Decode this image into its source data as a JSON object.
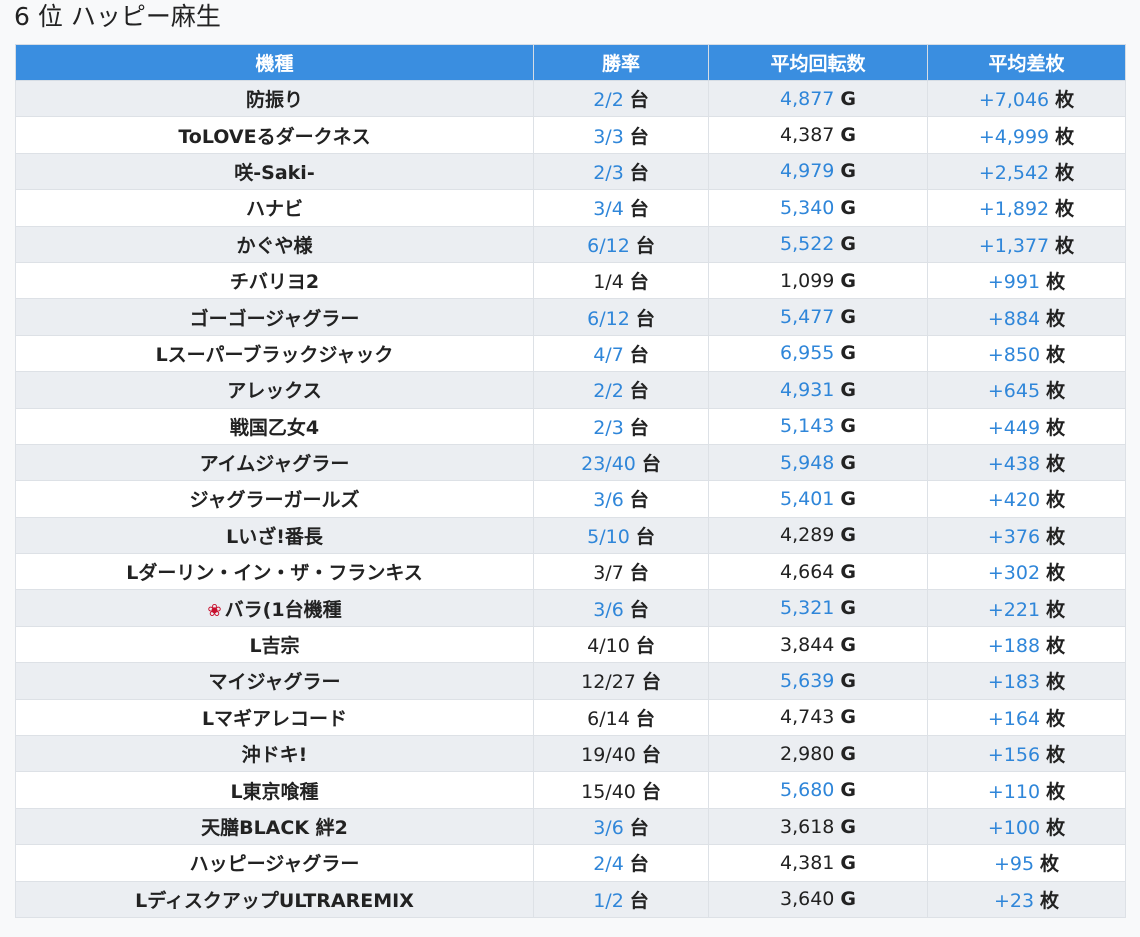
{
  "title": {
    "rank": "6 位",
    "store": "ハッピー麻生"
  },
  "header": {
    "model": "機種",
    "win_rate": "勝率",
    "avg_spins": "平均回転数",
    "avg_diff": "平均差枚"
  },
  "units": {
    "machines": "台",
    "games": "G",
    "medals": "枚"
  },
  "colors": {
    "header_bg": "#3a8ee0",
    "link_blue": "#2f86d9",
    "row_alt": "#ebeef2"
  },
  "rows": [
    {
      "model": "防振り",
      "win": "2/2",
      "win_blue": true,
      "spins": "4,877",
      "spins_blue": true,
      "diff": "+7,046"
    },
    {
      "model": "ToLOVEるダークネス",
      "win": "3/3",
      "win_blue": true,
      "spins": "4,387",
      "spins_blue": false,
      "diff": "+4,999"
    },
    {
      "model": "咲-Saki-",
      "win": "2/3",
      "win_blue": true,
      "spins": "4,979",
      "spins_blue": true,
      "diff": "+2,542"
    },
    {
      "model": "ハナビ",
      "win": "3/4",
      "win_blue": true,
      "spins": "5,340",
      "spins_blue": true,
      "diff": "+1,892"
    },
    {
      "model": "かぐや様",
      "win": "6/12",
      "win_blue": true,
      "spins": "5,522",
      "spins_blue": true,
      "diff": "+1,377"
    },
    {
      "model": "チバリヨ2",
      "win": "1/4",
      "win_blue": false,
      "spins": "1,099",
      "spins_blue": false,
      "diff": "+991"
    },
    {
      "model": "ゴーゴージャグラー",
      "win": "6/12",
      "win_blue": true,
      "spins": "5,477",
      "spins_blue": true,
      "diff": "+884"
    },
    {
      "model": "Lスーパーブラックジャック",
      "win": "4/7",
      "win_blue": true,
      "spins": "6,955",
      "spins_blue": true,
      "diff": "+850"
    },
    {
      "model": "アレックス",
      "win": "2/2",
      "win_blue": true,
      "spins": "4,931",
      "spins_blue": true,
      "diff": "+645"
    },
    {
      "model": "戦国乙女4",
      "win": "2/3",
      "win_blue": true,
      "spins": "5,143",
      "spins_blue": true,
      "diff": "+449"
    },
    {
      "model": "アイムジャグラー",
      "win": "23/40",
      "win_blue": true,
      "spins": "5,948",
      "spins_blue": true,
      "diff": "+438"
    },
    {
      "model": "ジャグラーガールズ",
      "win": "3/6",
      "win_blue": true,
      "spins": "5,401",
      "spins_blue": true,
      "diff": "+420"
    },
    {
      "model": "Lいざ!番長",
      "win": "5/10",
      "win_blue": true,
      "spins": "4,289",
      "spins_blue": false,
      "diff": "+376"
    },
    {
      "model": "Lダーリン・イン・ザ・フランキス",
      "win": "3/7",
      "win_blue": false,
      "spins": "4,664",
      "spins_blue": false,
      "diff": "+302"
    },
    {
      "model": "バラ(1台機種",
      "rose": true,
      "win": "3/6",
      "win_blue": true,
      "spins": "5,321",
      "spins_blue": true,
      "diff": "+221"
    },
    {
      "model": "L吉宗",
      "win": "4/10",
      "win_blue": false,
      "spins": "3,844",
      "spins_blue": false,
      "diff": "+188"
    },
    {
      "model": "マイジャグラー",
      "win": "12/27",
      "win_blue": false,
      "spins": "5,639",
      "spins_blue": true,
      "diff": "+183"
    },
    {
      "model": "Lマギアレコード",
      "win": "6/14",
      "win_blue": false,
      "spins": "4,743",
      "spins_blue": false,
      "diff": "+164"
    },
    {
      "model": "沖ドキ!",
      "win": "19/40",
      "win_blue": false,
      "spins": "2,980",
      "spins_blue": false,
      "diff": "+156"
    },
    {
      "model": "L東京喰種",
      "win": "15/40",
      "win_blue": false,
      "spins": "5,680",
      "spins_blue": true,
      "diff": "+110"
    },
    {
      "model": "天膳BLACK 絆2",
      "win": "3/6",
      "win_blue": true,
      "spins": "3,618",
      "spins_blue": false,
      "diff": "+100"
    },
    {
      "model": "ハッピージャグラー",
      "win": "2/4",
      "win_blue": true,
      "spins": "4,381",
      "spins_blue": false,
      "diff": "+95"
    },
    {
      "model": "LディスクアップULTRAREMIX",
      "win": "1/2",
      "win_blue": true,
      "spins": "3,640",
      "spins_blue": false,
      "diff": "+23"
    }
  ]
}
